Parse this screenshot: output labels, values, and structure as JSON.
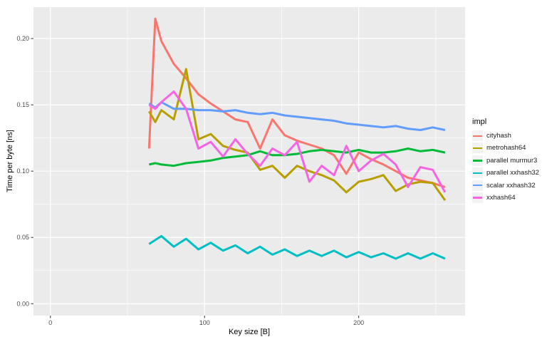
{
  "figure": {
    "background": "#FFFFFF",
    "panel_background": "#EBEBEB",
    "grid_color": "#FFFFFF",
    "tick_color": "#333333",
    "tick_label_color": "#4D4D4D",
    "axis_title_color": "#000000",
    "legend_key_background": "#F2F2F2"
  },
  "chart_data": {
    "type": "line",
    "title": "",
    "xlabel": "Key size [B]",
    "ylabel": "Time per byte [ns]",
    "legend_title": "impl",
    "legend_position": "right",
    "grid": true,
    "xlim": [
      -11,
      269
    ],
    "ylim": [
      -0.009,
      0.2237
    ],
    "x_major_ticks": [
      0,
      100,
      200
    ],
    "x_minor_ticks": [
      50,
      150,
      250
    ],
    "x_tick_labels": [
      "0",
      "100",
      "200"
    ],
    "y_major_ticks": [
      0,
      0.05,
      0.1,
      0.15,
      0.2
    ],
    "y_minor_ticks": [
      0.025,
      0.075,
      0.125,
      0.175
    ],
    "y_tick_labels": [
      "0.00",
      "0.05",
      "0.10",
      "0.15",
      "0.20"
    ],
    "x": [
      64,
      68,
      72,
      80,
      88,
      96,
      104,
      112,
      120,
      128,
      136,
      144,
      152,
      160,
      168,
      176,
      184,
      192,
      200,
      208,
      216,
      224,
      232,
      240,
      248,
      256
    ],
    "series": [
      {
        "name": "cityhash",
        "color": "#F8766D",
        "values": [
          0.117,
          0.215,
          0.198,
          0.181,
          0.17,
          0.158,
          0.151,
          0.145,
          0.139,
          0.137,
          0.117,
          0.139,
          0.127,
          0.123,
          0.12,
          0.117,
          0.112,
          0.098,
          0.114,
          0.109,
          0.105,
          0.1,
          0.095,
          0.093,
          0.091,
          0.088
        ]
      },
      {
        "name": "metrohash64",
        "color": "#B79F00",
        "values": [
          0.145,
          0.137,
          0.146,
          0.139,
          0.177,
          0.124,
          0.128,
          0.119,
          0.116,
          0.114,
          0.101,
          0.104,
          0.095,
          0.104,
          0.1,
          0.097,
          0.093,
          0.084,
          0.092,
          0.094,
          0.097,
          0.085,
          0.09,
          0.092,
          0.091,
          0.078
        ]
      },
      {
        "name": "parallel murmur3",
        "color": "#00BA38",
        "values": [
          0.105,
          0.106,
          0.105,
          0.104,
          0.106,
          0.107,
          0.108,
          0.11,
          0.111,
          0.112,
          0.115,
          0.112,
          0.112,
          0.113,
          0.115,
          0.116,
          0.115,
          0.114,
          0.116,
          0.114,
          0.114,
          0.115,
          0.117,
          0.115,
          0.116,
          0.114
        ]
      },
      {
        "name": "parallel xxhash32",
        "color": "#00BFC4",
        "values": [
          0.045,
          0.048,
          0.051,
          0.043,
          0.049,
          0.041,
          0.046,
          0.04,
          0.044,
          0.038,
          0.043,
          0.037,
          0.041,
          0.036,
          0.04,
          0.036,
          0.04,
          0.035,
          0.039,
          0.035,
          0.038,
          0.034,
          0.038,
          0.034,
          0.038,
          0.034
        ]
      },
      {
        "name": "scalar xxhash32",
        "color": "#619CFF",
        "values": [
          0.151,
          0.148,
          0.152,
          0.147,
          0.147,
          0.146,
          0.146,
          0.145,
          0.146,
          0.144,
          0.143,
          0.144,
          0.142,
          0.141,
          0.14,
          0.139,
          0.138,
          0.136,
          0.135,
          0.134,
          0.133,
          0.134,
          0.132,
          0.131,
          0.133,
          0.131
        ]
      },
      {
        "name": "xxhash64",
        "color": "#F564E3",
        "values": [
          0.15,
          0.147,
          0.152,
          0.16,
          0.147,
          0.117,
          0.122,
          0.111,
          0.124,
          0.113,
          0.104,
          0.117,
          0.112,
          0.122,
          0.092,
          0.104,
          0.097,
          0.119,
          0.1,
          0.108,
          0.113,
          0.105,
          0.088,
          0.103,
          0.101,
          0.084
        ]
      }
    ]
  }
}
